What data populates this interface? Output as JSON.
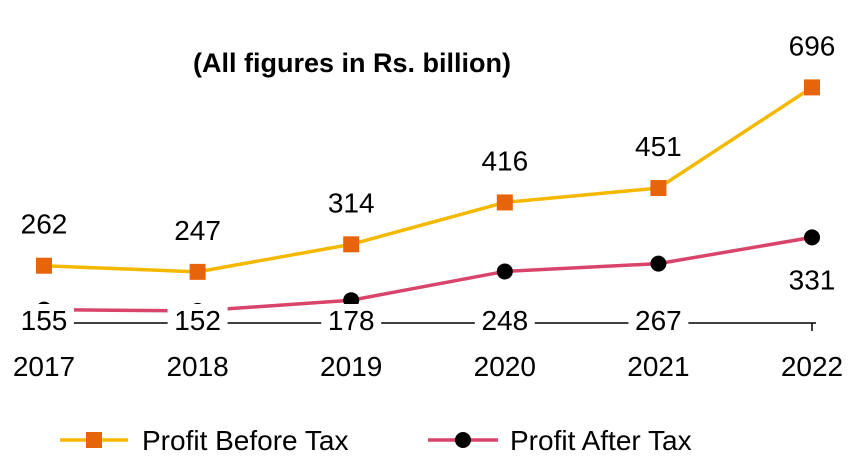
{
  "chart_data": {
    "type": "line",
    "title": "",
    "subtitle": "(All figures in Rs. billion)",
    "xlabel": "",
    "ylabel": "",
    "categories": [
      "2017",
      "2018",
      "2019",
      "2020",
      "2021",
      "2022"
    ],
    "ylim": [
      0,
      750
    ],
    "grid": false,
    "legend_position": "bottom",
    "series": [
      {
        "name": "Profit Before Tax",
        "values": [
          262,
          247,
          314,
          416,
          451,
          696
        ],
        "labels": [
          "262",
          "247",
          "314",
          "416",
          "451",
          "696"
        ],
        "color": "#F5B800",
        "marker": "square",
        "marker_color": "#E8640A",
        "label_side": "above"
      },
      {
        "name": "Profit After Tax",
        "values": [
          155,
          152,
          178,
          248,
          267,
          331
        ],
        "labels": [
          "155",
          "152",
          "178",
          "248",
          "267",
          "331"
        ],
        "color": "#D9456A",
        "marker": "circle",
        "marker_color": "#000000",
        "label_side": "below"
      }
    ]
  }
}
